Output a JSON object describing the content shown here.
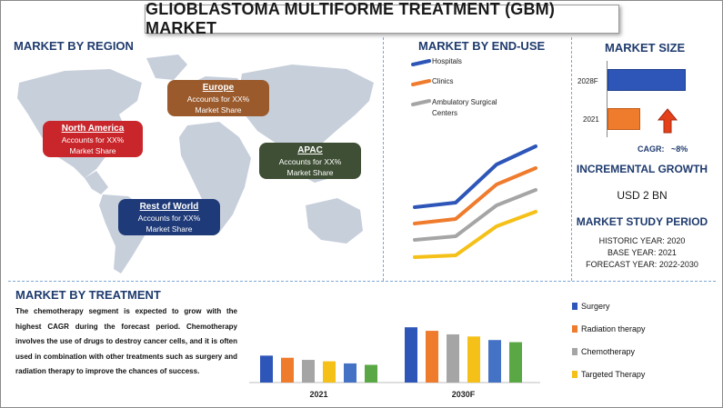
{
  "title": "GLIOBLASTOMA MULTIFORME TREATMENT (GBM) MARKET",
  "region": {
    "heading": "MARKET BY REGION",
    "items": [
      {
        "name": "North America",
        "line1": "Accounts for XX%",
        "line2": "Market Share",
        "color": "#c8262b"
      },
      {
        "name": "Europe",
        "line1": "Accounts for XX%",
        "line2": "Market Share",
        "color": "#9a5a2c"
      },
      {
        "name": "APAC",
        "line1": "Accounts for XX%",
        "line2": "Market Share",
        "color": "#3f4f35"
      },
      {
        "name": "Rest of World",
        "line1": "Accounts for XX%",
        "line2": "Market Share",
        "color": "#1e3a78"
      }
    ]
  },
  "end_use": {
    "heading": "MARKET BY END-USE",
    "legend": [
      {
        "label": "Hospitals",
        "color": "#2e56b8"
      },
      {
        "label": "Clinics",
        "color": "#ef7b2d"
      },
      {
        "label": "Ambulatory Surgical Centers",
        "color": "#a5a5a5"
      }
    ]
  },
  "market_size": {
    "heading": "MARKET SIZE",
    "rows": [
      {
        "label": "2028F",
        "color": "#2e56b8"
      },
      {
        "label": "2021",
        "color": "#ef7b2d"
      }
    ],
    "cagr_label": "CAGR:",
    "cagr_value": "~8%",
    "incremental_heading": "INCREMENTAL GROWTH",
    "incremental_value": "USD 2 BN",
    "study_heading": "MARKET STUDY PERIOD",
    "historic": "HISTORIC YEAR: 2020",
    "base": "BASE YEAR: 2021",
    "forecast": "FORECAST YEAR: 2022-2030"
  },
  "treatment": {
    "heading": "MARKET BY TREATMENT",
    "text": "The chemotherapy segment is expected to grow with the highest CAGR during the forecast period. Chemotherapy involves the use of drugs to destroy cancer cells, and it is often used in combination with other treatments such as surgery and radiation therapy to improve the chances of success.",
    "legend": [
      {
        "label": "Surgery",
        "color": "#2e56b8"
      },
      {
        "label": "Radiation therapy",
        "color": "#ef7b2d"
      },
      {
        "label": "Chemotherapy",
        "color": "#a5a5a5"
      },
      {
        "label": "Targeted Therapy",
        "color": "#f5c018"
      }
    ]
  },
  "chart_data": {
    "type": "bar",
    "categories": [
      "2021",
      "2030F"
    ],
    "series": [
      {
        "values": [
          38,
          78
        ],
        "color": "#2e56b8"
      },
      {
        "values": [
          35,
          73
        ],
        "color": "#ef7b2d"
      },
      {
        "values": [
          32,
          68
        ],
        "color": "#a5a5a5"
      },
      {
        "values": [
          30,
          65
        ],
        "color": "#f5c018"
      },
      {
        "values": [
          27,
          60
        ],
        "color": "#4472c4"
      },
      {
        "values": [
          25,
          57
        ],
        "color": "#5aa845"
      }
    ],
    "ylim": [
      0,
      100
    ]
  }
}
